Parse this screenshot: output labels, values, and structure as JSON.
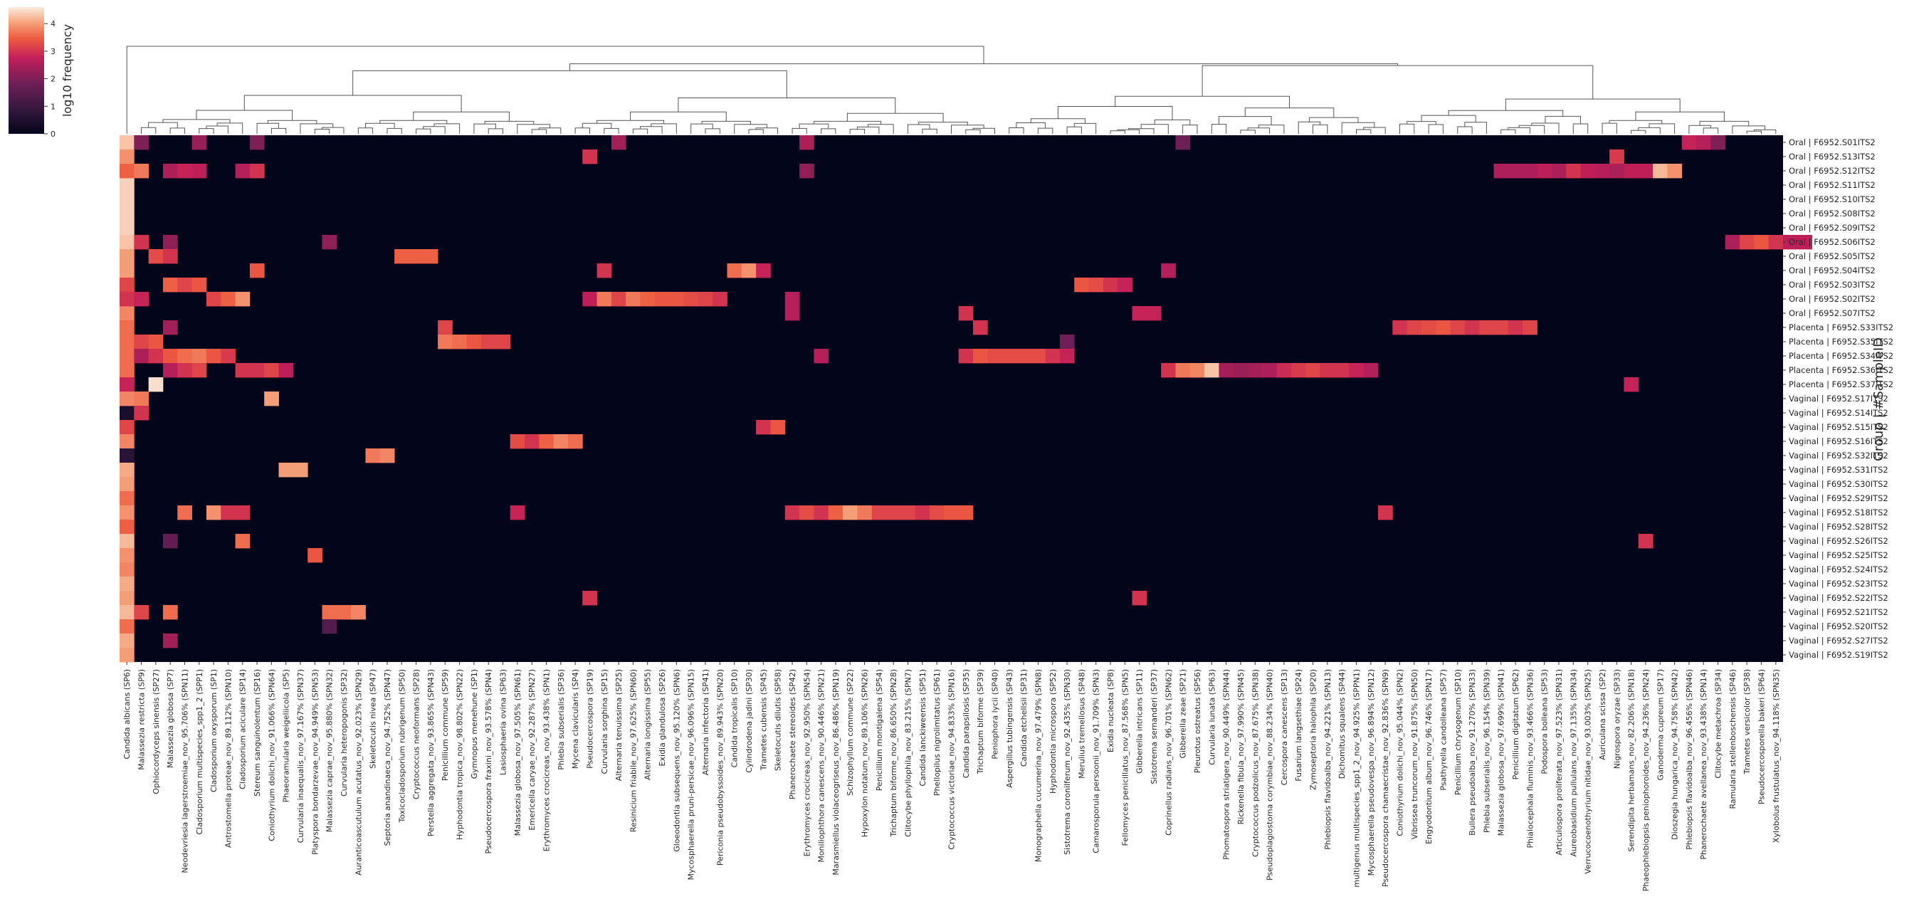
{
  "chart_data": {
    "type": "heatmap",
    "colorbar": {
      "label": "log10 frequency",
      "ticks": [
        "0",
        "1",
        "2",
        "3",
        "4"
      ],
      "vmin": 0,
      "vmax": 4.6
    },
    "ylabel": "Group | #SampleID",
    "rows": [
      "Oral | F6952.S01ITS2",
      "Oral | F6952.S13ITS2",
      "Oral | F6952.S12ITS2",
      "Oral | F6952.S11ITS2",
      "Oral | F6952.S10ITS2",
      "Oral | F6952.S08ITS2",
      "Oral | F6952.S09ITS2",
      "Oral | F6952.S06ITS2",
      "Oral | F6952.S05ITS2",
      "Oral | F6952.S04ITS2",
      "Oral | F6952.S03ITS2",
      "Oral | F6952.S02ITS2",
      "Oral | F6952.S07ITS2",
      "Placenta | F6952.S33ITS2",
      "Placenta | F6952.S35ITS2",
      "Placenta | F6952.S34ITS2",
      "Placenta | F6952.S36ITS2",
      "Placenta | F6952.S37ITS2",
      "Vaginal | F6952.S17ITS2",
      "Vaginal | F6952.S14ITS2",
      "Vaginal | F6952.S15ITS2",
      "Vaginal | F6952.S16ITS2",
      "Vaginal | F6952.S32ITS2",
      "Vaginal | F6952.S31ITS2",
      "Vaginal | F6952.S30ITS2",
      "Vaginal | F6952.S29ITS2",
      "Vaginal | F6952.S18ITS2",
      "Vaginal | F6952.S28ITS2",
      "Vaginal | F6952.S26ITS2",
      "Vaginal | F6952.S25ITS2",
      "Vaginal | F6952.S24ITS2",
      "Vaginal | F6952.S23ITS2",
      "Vaginal | F6952.S22ITS2",
      "Vaginal | F6952.S21ITS2",
      "Vaginal | F6952.S20ITS2",
      "Vaginal | F6952.S27ITS2",
      "Vaginal | F6952.S19ITS2"
    ],
    "columns": [
      "Candida albicans (SP6)",
      "Malassezia restricta (SP9)",
      "Ophiocordyceps sinensis (SP27)",
      "Malassezia globosa (SP7)",
      "Neodevriesia lagerstroemiae_nov_95.706% (SPN11)",
      "Cladosporium multispecies_spp1_2 (SPP1)",
      "Cladosporium oxysporum (SP1)",
      "Antrostomella proteae_nov_89.112% (SPN10)",
      "Cladosporium aciculare (SP14)",
      "Stereum sanguinolentum (SP16)",
      "Coniothyrium dolichi_nov_91.066% (SPN64)",
      "Phaeoramularia weigeliicola (SP5)",
      "Curvularia inaequalis_nov_97.167% (SPN37)",
      "Platyspora bondarzevae_nov_94.949% (SPN53)",
      "Malassezia caprae_nov_95.880% (SPN32)",
      "Curvularia heteropogonis (SP32)",
      "Auranticoascutulum acutatus_nov_92.023% (SPN29)",
      "Skeletocutis nivea (SP47)",
      "Septoria anandinaeca_nov_94.752% (SPN47)",
      "Toxicocladosporium rubrigenum (SP50)",
      "Cryptococcus neoformans (SP28)",
      "Perstella aggregata_nov_93.865% (SPN43)",
      "Penicillium commune (SP59)",
      "Hyphodontia tropica_nov_98.802% (SPN22)",
      "Gymnopus menehune (SP1)",
      "Pseudocercospora fraxini_nov_93.578% (SPN4)",
      "Lasiosphaeria ovina (SP63)",
      "Malassezia globosa_nov_97.505% (SPN61)",
      "Emericella caryae_nov_92.287% (SPN27)",
      "Erythromyces crocicreas_nov_93.438% (SPN1)",
      "Phlebia subserialis (SP36)",
      "Mycena clavicularis (SP4)",
      "Pseudocercospora (SP19)",
      "Curvularia sorghina (SP15)",
      "Alternaria tenuissima (SP25)",
      "Resinicium friabile_nov_97.625% (SPN60)",
      "Alternaria longissima (SP55)",
      "Exidia glandulosa (SP26)",
      "Gloeodontia subsequens_nov_95.120% (SPN6)",
      "Mycosphaerella pruni-persicae_nov_96.096% (SPN15)",
      "Alternaria infectoria (SP41)",
      "Periconia pseudobyssoides_nov_89.943% (SPN20)",
      "Candida tropicalis (SP10)",
      "Cylindrodena jadini (SP30)",
      "Trametes cubensis (SP45)",
      "Skeletocutis dilutis (SP58)",
      "Phanerochaete stereoides (SP42)",
      "Erythromyces crocicreas_nov_92.950% (SPN54)",
      "Moniliophthora canescens_nov_90.446% (SPN21)",
      "Marasmiellus violaceogriseus_nov_86.486% (SPN19)",
      "Schizophyllum commune (SP22)",
      "Hypoxylon notatum_nov_89.106% (SPN26)",
      "Penicillium montigalena (SP54)",
      "Trichaptum biforme_nov_86.650% (SPN28)",
      "Clitocybe phyllophila_nov_83.215% (SPN7)",
      "Candida lanckiweensis (SP51)",
      "Phellopilus nigrolimitatus (SP61)",
      "Cryptococcus victoriae_nov_94.833% (SPN16)",
      "Candida parapsilosis (SP35)",
      "Trichaptum biforme (SP39)",
      "Peniophora lycii (SP40)",
      "Aspergillus tubingensis (SP43)",
      "Candida etchellsii (SP31)",
      "Monographella cucumerina_nov_97.479% (SPN8)",
      "Hyphodontia microspora (SP52)",
      "Sistotrema coronilferum_nov_92.435% (SPN30)",
      "Merulius tremellosus (SP48)",
      "Camarosporula persoonii_nov_91.709% (SPN3)",
      "Exidia nucleata (SP8)",
      "Fellomyces penicillatus_nov_87.568% (SPN5)",
      "Gibberella intricans (SP11)",
      "Sistotrema sernanderi (SP37)",
      "Coprinellus radians_nov_96.701% (SPN62)",
      "Gibberella zeae (SP21)",
      "Pleurotus ostreatus (SP56)",
      "Curvularia lunata (SP63)",
      "Phomatospora striatigera_nov_90.449% (SPN44)",
      "Rickenella fibula_nov_97.990% (SPN45)",
      "Cryptococcus podzolicus_nov_87.675% (SPN38)",
      "Pseudoplagiostoma corymbiae_nov_88.234% (SPN40)",
      "Cercospora canescens (SP13)",
      "Fusarium langsethiae (SP24)",
      "Zymoseptoria halophila (SP20)",
      "Phlebiopsis flavidoalba_nov_94.221% (SPN13)",
      "Dichomitus squalens (SP44)",
      "multigenus multispecies_spp1_2_nov_94.925% (SPPN1)",
      "Mycosphaerella pseudovespa_nov_96.894% (SPN12)",
      "Pseudocercospora chamaecristae_nov_92.836% (SPN9)",
      "Coniothyrium dolichi_nov_95.044% (SPN2)",
      "Vibrissea truncorum_nov_91.875% (SPN50)",
      "Engyodontium album_nov_96.746% (SPN17)",
      "Psathyrella candolleana (SP57)",
      "Penicillium chrysogenum (SP10)",
      "Bullera pseudoalba_nov_91.270% (SPN33)",
      "Phlebia subserialis_nov_96.154% (SPN39)",
      "Malassezia globosa_nov_97.699% (SPN41)",
      "Penicillium digitatum (SP62)",
      "Phialocephala fluminis_nov_93.466% (SPN36)",
      "Podospora bolleana (SP53)",
      "Articulospora proliferata_nov_97.523% (SPN31)",
      "Aureobasidium pullulans_nov_97.135% (SPN34)",
      "Verrucocoenothyrium nitidae_nov_93.003% (SPN25)",
      "Auriculana scissa (SP2)",
      "Nigrospora oryzae (SP33)",
      "Serendipita herbamans_nov_82.206% (SPN18)",
      "Phaeophlebiopsis peniophoroides_nov_94.236% (SPN24)",
      "Ganoderma cupreum (SP17)",
      "Dioszegia hungarica_nov_94.758% (SPN42)",
      "Phlebiopsis flavidoalba_nov_96.456% (SPN46)",
      "Phanerochaete avellanea_nov_93.438% (SPN14)",
      "Clitocybe metachroa (SP34)",
      "Ramularia stellenboschensis (SP46)",
      "Trametes versicolor (SP38)",
      "Pseudocercosporella bakeri (SP64)",
      "Xylobolus frustulatus_nov_94.118% (SPN35)"
    ],
    "col0_values": [
      4.3,
      3.9,
      3.2,
      4.4,
      4.4,
      4.4,
      4.4,
      4.3,
      4.0,
      4.0,
      3.4,
      3.6,
      3.8,
      3.6,
      4.0,
      3.2,
      3.4,
      3.5,
      3.8,
      0.4,
      3.2,
      3.8,
      0.7,
      4.1,
      4.0,
      3.6,
      3.9,
      3.5,
      4.2,
      3.9,
      3.8,
      4.1,
      4.0,
      4.2,
      3.6,
      4.1,
      4.0
    ],
    "cells": [
      [
        0,
        1,
        2.0
      ],
      [
        0,
        5,
        2.3
      ],
      [
        0,
        9,
        2.0
      ],
      [
        0,
        34,
        2.4
      ],
      [
        0,
        47,
        2.5
      ],
      [
        0,
        73,
        1.8
      ],
      [
        0,
        108,
        2.8
      ],
      [
        0,
        109,
        2.6
      ],
      [
        0,
        110,
        2.0
      ],
      [
        1,
        32,
        3.0
      ],
      [
        1,
        103,
        3.1
      ],
      [
        2,
        0,
        3.5
      ],
      [
        2,
        1,
        3.7
      ],
      [
        2,
        3,
        2.5
      ],
      [
        2,
        4,
        2.8
      ],
      [
        2,
        5,
        2.7
      ],
      [
        2,
        8,
        2.6
      ],
      [
        2,
        9,
        3.0
      ],
      [
        2,
        47,
        2.2
      ],
      [
        2,
        95,
        2.5
      ],
      [
        2,
        96,
        2.5
      ],
      [
        2,
        97,
        2.5
      ],
      [
        2,
        98,
        2.7
      ],
      [
        2,
        99,
        2.5
      ],
      [
        2,
        100,
        3.0
      ],
      [
        2,
        101,
        2.7
      ],
      [
        2,
        102,
        2.6
      ],
      [
        2,
        103,
        2.5
      ],
      [
        2,
        104,
        2.7
      ],
      [
        2,
        105,
        2.7
      ],
      [
        2,
        106,
        4.2
      ],
      [
        2,
        107,
        3.9
      ],
      [
        7,
        1,
        3.0
      ],
      [
        7,
        3,
        2.2
      ],
      [
        7,
        14,
        2.2
      ],
      [
        7,
        111,
        2.5
      ],
      [
        7,
        112,
        3.2
      ],
      [
        7,
        113,
        3.4
      ],
      [
        7,
        114,
        3.0
      ],
      [
        7,
        115,
        2.7
      ],
      [
        7,
        116,
        2.7
      ],
      [
        8,
        2,
        3.3
      ],
      [
        8,
        3,
        3.0
      ],
      [
        8,
        19,
        3.5
      ],
      [
        8,
        20,
        3.5
      ],
      [
        8,
        21,
        3.5
      ],
      [
        9,
        9,
        3.4
      ],
      [
        9,
        33,
        3.0
      ],
      [
        9,
        42,
        3.6
      ],
      [
        9,
        43,
        3.9
      ],
      [
        9,
        44,
        2.8
      ],
      [
        9,
        72,
        2.6
      ],
      [
        10,
        0,
        3.2
      ],
      [
        10,
        3,
        3.5
      ],
      [
        10,
        4,
        3.2
      ],
      [
        10,
        5,
        3.4
      ],
      [
        10,
        66,
        3.4
      ],
      [
        10,
        67,
        3.3
      ],
      [
        10,
        68,
        3.0
      ],
      [
        10,
        69,
        2.8
      ],
      [
        11,
        0,
        3.0
      ],
      [
        11,
        1,
        2.8
      ],
      [
        11,
        6,
        3.2
      ],
      [
        11,
        7,
        3.5
      ],
      [
        11,
        8,
        3.9
      ],
      [
        11,
        32,
        2.7
      ],
      [
        11,
        33,
        3.7
      ],
      [
        11,
        34,
        3.2
      ],
      [
        11,
        35,
        3.7
      ],
      [
        11,
        36,
        3.5
      ],
      [
        11,
        37,
        3.4
      ],
      [
        11,
        38,
        3.4
      ],
      [
        11,
        39,
        3.3
      ],
      [
        11,
        40,
        3.2
      ],
      [
        11,
        41,
        3.0
      ],
      [
        11,
        46,
        2.6
      ],
      [
        12,
        46,
        2.6
      ],
      [
        12,
        58,
        3.0
      ],
      [
        12,
        70,
        2.8
      ],
      [
        12,
        71,
        2.8
      ],
      [
        13,
        3,
        2.4
      ],
      [
        13,
        22,
        3.2
      ],
      [
        13,
        59,
        3.0
      ],
      [
        13,
        88,
        3.0
      ],
      [
        13,
        89,
        3.2
      ],
      [
        13,
        90,
        3.3
      ],
      [
        13,
        91,
        3.4
      ],
      [
        13,
        92,
        3.2
      ],
      [
        13,
        93,
        3.0
      ],
      [
        13,
        94,
        3.2
      ],
      [
        13,
        95,
        3.2
      ],
      [
        13,
        96,
        3.0
      ],
      [
        13,
        97,
        3.2
      ],
      [
        14,
        0,
        3.6
      ],
      [
        14,
        1,
        3.2
      ],
      [
        14,
        2,
        3.4
      ],
      [
        14,
        22,
        3.7
      ],
      [
        14,
        23,
        3.6
      ],
      [
        14,
        24,
        3.4
      ],
      [
        14,
        25,
        3.2
      ],
      [
        14,
        26,
        3.2
      ],
      [
        14,
        65,
        1.8
      ],
      [
        15,
        0,
        3.6
      ],
      [
        15,
        1,
        2.5
      ],
      [
        15,
        2,
        3.0
      ],
      [
        15,
        3,
        3.4
      ],
      [
        15,
        4,
        3.6
      ],
      [
        15,
        5,
        3.7
      ],
      [
        15,
        6,
        3.4
      ],
      [
        15,
        7,
        3.1
      ],
      [
        15,
        48,
        2.6
      ],
      [
        15,
        58,
        3.0
      ],
      [
        15,
        59,
        3.4
      ],
      [
        15,
        60,
        3.3
      ],
      [
        15,
        61,
        3.3
      ],
      [
        15,
        62,
        3.3
      ],
      [
        15,
        63,
        3.3
      ],
      [
        15,
        64,
        3.0
      ],
      [
        15,
        65,
        2.8
      ],
      [
        16,
        0,
        3.6
      ],
      [
        16,
        3,
        2.6
      ],
      [
        16,
        4,
        3.0
      ],
      [
        16,
        5,
        3.2
      ],
      [
        16,
        8,
        3.0
      ],
      [
        16,
        9,
        3.0
      ],
      [
        16,
        10,
        3.2
      ],
      [
        16,
        11,
        2.7
      ],
      [
        16,
        72,
        3.0
      ],
      [
        16,
        73,
        3.7
      ],
      [
        16,
        74,
        3.8
      ],
      [
        16,
        75,
        4.3
      ],
      [
        16,
        76,
        2.4
      ],
      [
        16,
        77,
        2.3
      ],
      [
        16,
        78,
        2.4
      ],
      [
        16,
        79,
        2.5
      ],
      [
        16,
        80,
        2.9
      ],
      [
        16,
        81,
        3.1
      ],
      [
        16,
        82,
        3.2
      ],
      [
        16,
        83,
        3.0
      ],
      [
        16,
        84,
        3.0
      ],
      [
        16,
        85,
        2.8
      ],
      [
        16,
        86,
        2.6
      ],
      [
        17,
        0,
        2.8
      ],
      [
        17,
        2,
        4.5
      ],
      [
        17,
        104,
        2.8
      ],
      [
        18,
        0,
        3.8
      ],
      [
        18,
        1,
        3.7
      ],
      [
        18,
        10,
        4.0
      ],
      [
        19,
        1,
        3.0
      ],
      [
        20,
        44,
        3.0
      ],
      [
        20,
        45,
        3.4
      ],
      [
        21,
        27,
        3.3
      ],
      [
        21,
        28,
        3.0
      ],
      [
        21,
        29,
        3.5
      ],
      [
        21,
        30,
        3.8
      ],
      [
        21,
        31,
        3.6
      ],
      [
        22,
        17,
        3.7
      ],
      [
        22,
        18,
        3.8
      ],
      [
        23,
        11,
        4.0
      ],
      [
        23,
        12,
        4.0
      ],
      [
        26,
        4,
        3.6
      ],
      [
        26,
        6,
        3.9
      ],
      [
        26,
        7,
        3.0
      ],
      [
        26,
        8,
        3.0
      ],
      [
        26,
        27,
        2.8
      ],
      [
        26,
        46,
        3.0
      ],
      [
        26,
        47,
        3.3
      ],
      [
        26,
        48,
        3.0
      ],
      [
        26,
        49,
        3.5
      ],
      [
        26,
        50,
        4.0
      ],
      [
        26,
        51,
        3.7
      ],
      [
        26,
        52,
        3.2
      ],
      [
        26,
        53,
        3.2
      ],
      [
        26,
        54,
        3.2
      ],
      [
        26,
        55,
        3.0
      ],
      [
        26,
        56,
        3.3
      ],
      [
        26,
        57,
        3.4
      ],
      [
        26,
        58,
        3.4
      ],
      [
        26,
        87,
        3.0
      ],
      [
        28,
        3,
        1.6
      ],
      [
        28,
        8,
        3.6
      ],
      [
        28,
        105,
        3.0
      ],
      [
        29,
        13,
        3.4
      ],
      [
        32,
        32,
        3.0
      ],
      [
        32,
        70,
        3.0
      ],
      [
        33,
        1,
        3.2
      ],
      [
        33,
        3,
        3.6
      ],
      [
        33,
        14,
        3.6
      ],
      [
        33,
        15,
        3.6
      ],
      [
        33,
        16,
        3.8
      ],
      [
        34,
        14,
        1.4
      ],
      [
        35,
        3,
        2.4
      ]
    ]
  }
}
